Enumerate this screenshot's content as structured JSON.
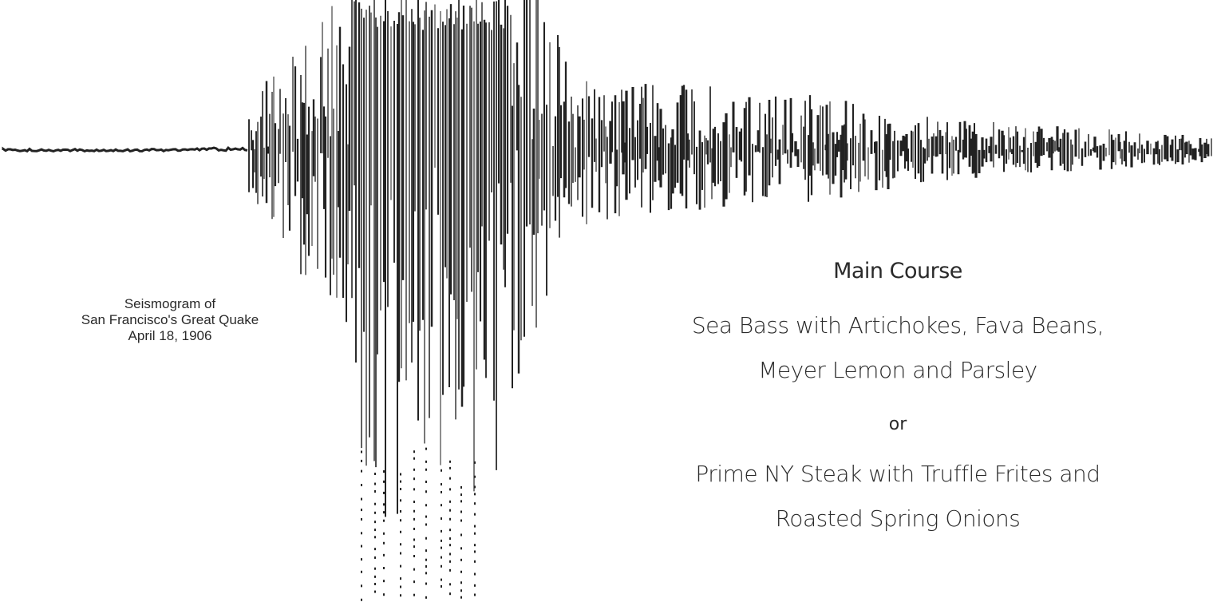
{
  "figure": {
    "description_icon": "seismogram-trace",
    "ink_color": "#222222"
  },
  "caption": {
    "line1": "Seismogram of",
    "line2": "San Francisco's Great Quake",
    "line3": "April 18, 1906"
  },
  "menu": {
    "heading": "Main Course",
    "option1_line1": "Sea Bass with Artichokes, Fava Beans,",
    "option1_line2": "Meyer Lemon and Parsley",
    "separator": "or",
    "option2_line1": "Prime NY Steak with Truffle Frites and",
    "option2_line2": "Roasted Spring Onions"
  }
}
